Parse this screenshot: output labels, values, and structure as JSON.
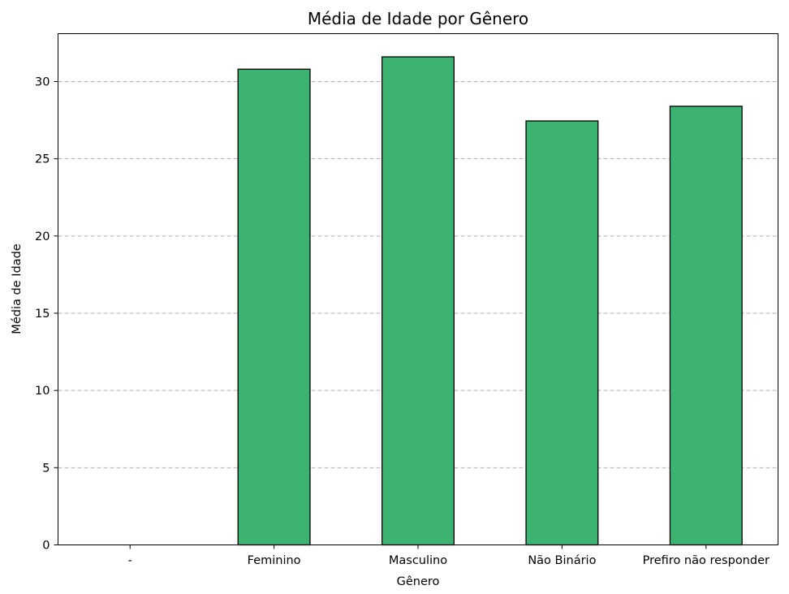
{
  "chart_data": {
    "type": "bar",
    "title": "Média de Idade por Gênero",
    "xlabel": "Gênero",
    "ylabel": "Média de Idade",
    "categories": [
      "-",
      "Feminino",
      "Masculino",
      "Não Binário",
      "Prefiro não responder"
    ],
    "values": [
      0,
      30.8,
      31.6,
      27.45,
      28.4
    ],
    "ylim": [
      0,
      33.1
    ],
    "yticks": [
      0,
      5,
      10,
      15,
      20,
      25,
      30
    ],
    "grid": "y-dashed",
    "colors": {
      "bar": "#3cb371",
      "edge": "#000000"
    }
  }
}
